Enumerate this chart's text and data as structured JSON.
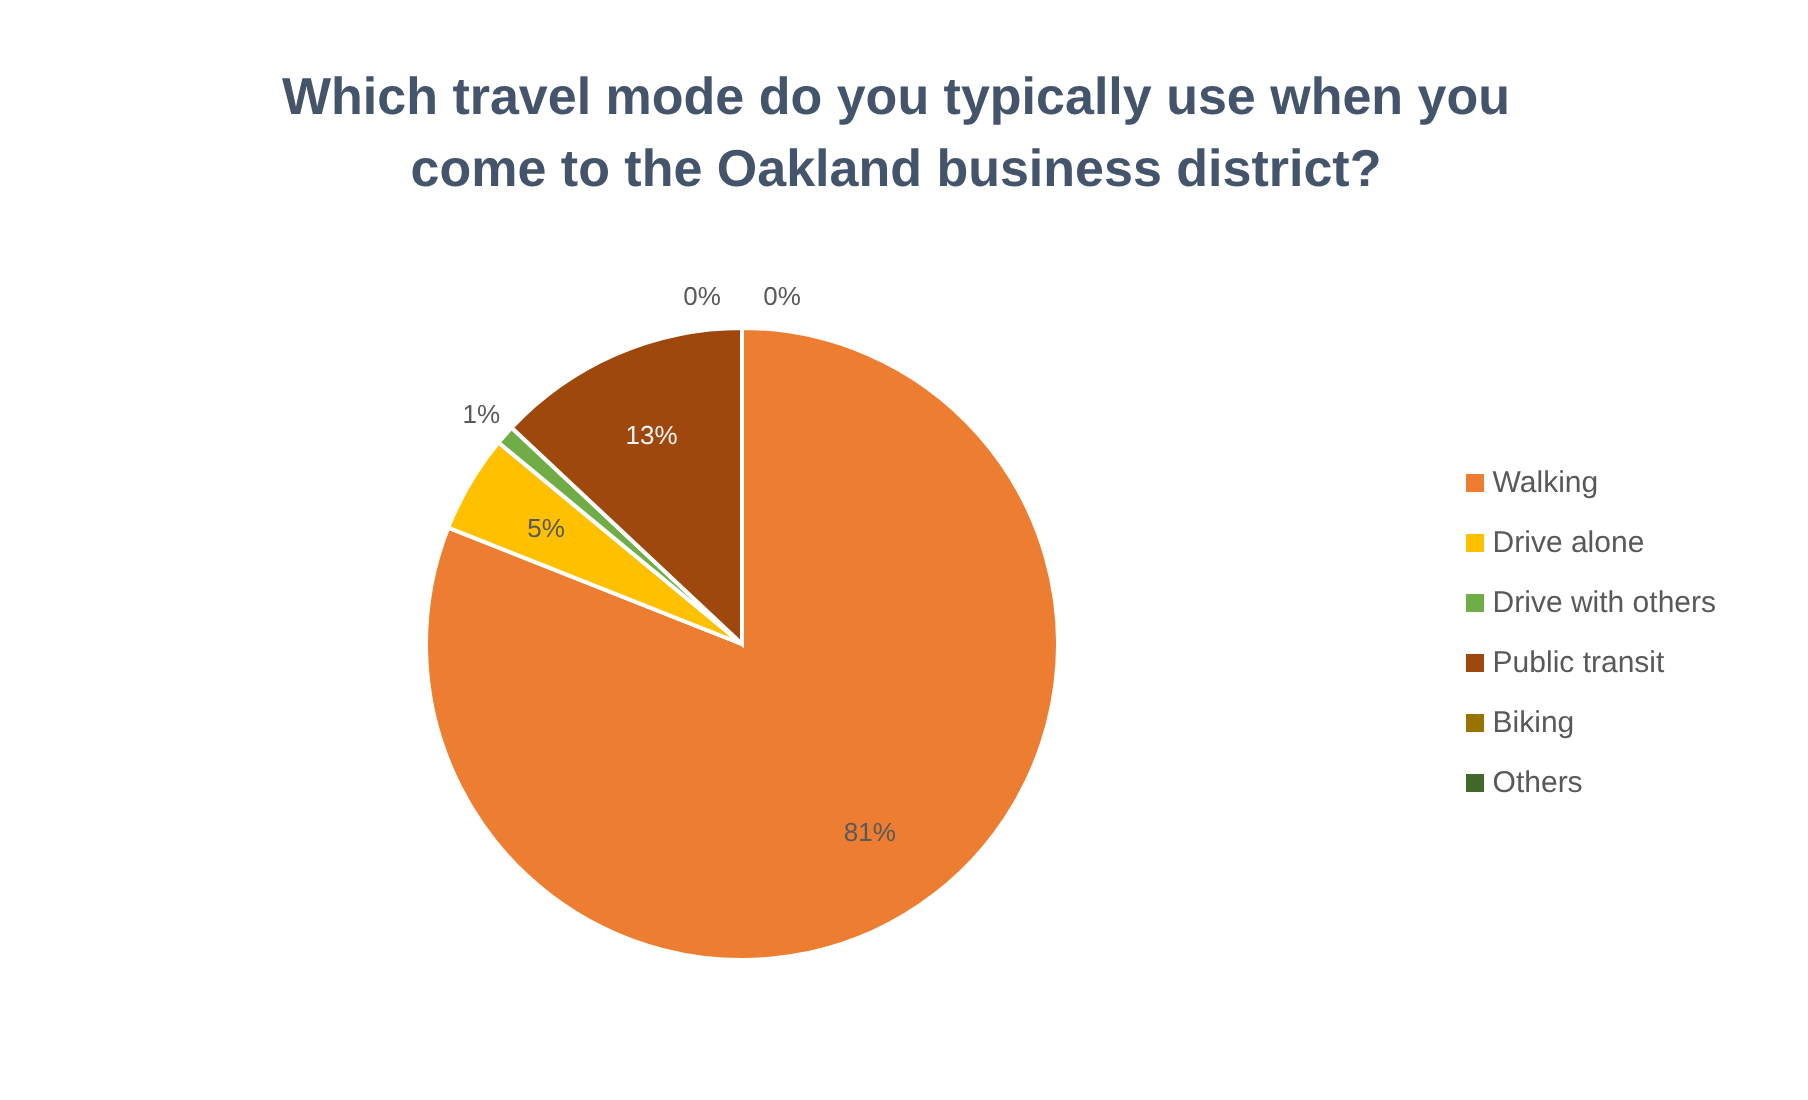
{
  "chart_data": {
    "type": "pie",
    "title": "Which travel mode do you typically use when you come to the Oakland business district?",
    "categories": [
      "Walking",
      "Drive alone",
      "Drive with others",
      "Public transit",
      "Biking",
      "Others"
    ],
    "values": [
      81,
      5,
      1,
      13,
      0,
      0
    ],
    "value_labels": [
      "81%",
      "5%",
      "1%",
      "13%",
      "0%",
      "0%"
    ],
    "colors": [
      "#ed7d31",
      "#ffc000",
      "#70ad47",
      "#9e480e",
      "#997300",
      "#43682b"
    ],
    "legend": "right"
  }
}
